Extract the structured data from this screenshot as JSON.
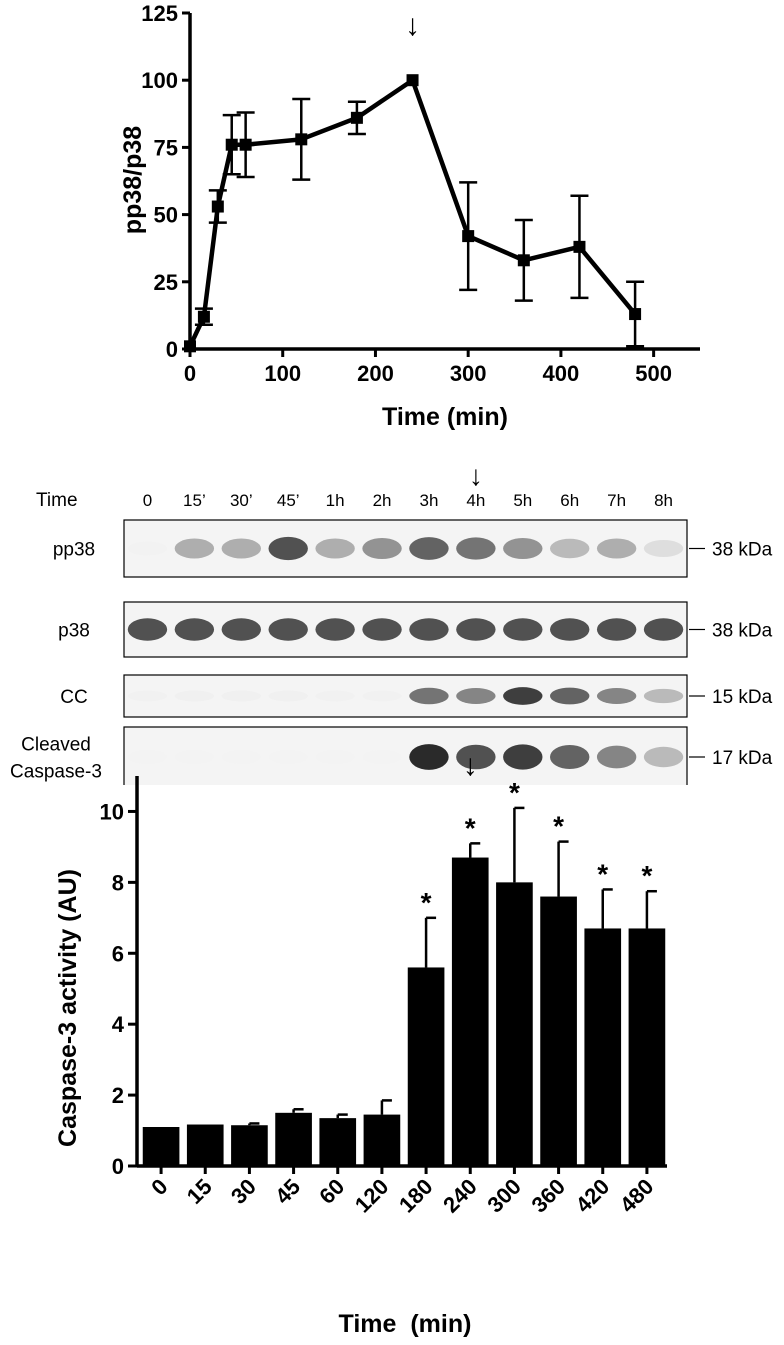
{
  "chart_data": [
    {
      "type": "line",
      "title": "",
      "xlabel": "Time (min)",
      "ylabel": "pp38/p38",
      "xlim": [
        0,
        550
      ],
      "ylim": [
        0,
        125
      ],
      "xticks": [
        "0",
        "100",
        "200",
        "300",
        "400",
        "500"
      ],
      "yticks": [
        "0",
        "25",
        "50",
        "75",
        "100",
        "125"
      ],
      "series": [
        {
          "x": [
            0,
            15,
            30,
            45,
            60,
            120,
            180,
            240,
            300,
            360,
            420,
            480
          ],
          "y": [
            1,
            12,
            53,
            76,
            76,
            78,
            86,
            100,
            42,
            33,
            38,
            13
          ],
          "error": [
            0,
            3,
            6,
            11,
            12,
            15,
            6,
            0,
            20,
            15,
            19,
            12
          ]
        }
      ],
      "annotation": {
        "marker": "↓",
        "at_x": 240
      }
    },
    {
      "type": "blot",
      "time_header": "Time",
      "lanes": [
        "0",
        "15’",
        "30’",
        "45’",
        "1h",
        "2h",
        "3h",
        "4h",
        "5h",
        "6h",
        "7h",
        "8h"
      ],
      "marker": "↓",
      "marker_lane": 7,
      "rows": [
        {
          "label": [
            "pp38"
          ],
          "kda": "38 kDa",
          "intensity": [
            0.02,
            0.55,
            0.55,
            0.85,
            0.55,
            0.65,
            0.8,
            0.75,
            0.65,
            0.5,
            0.55,
            0.3
          ]
        },
        {
          "label": [
            "p38"
          ],
          "kda": "38 kDa",
          "intensity": [
            0.85,
            0.85,
            0.85,
            0.85,
            0.85,
            0.85,
            0.85,
            0.85,
            0.85,
            0.85,
            0.85,
            0.85
          ]
        },
        {
          "label": [
            "CC"
          ],
          "kda": "15 kDa",
          "intensity": [
            0.08,
            0.1,
            0.1,
            0.1,
            0.08,
            0.08,
            0.75,
            0.7,
            0.9,
            0.8,
            0.7,
            0.5
          ]
        },
        {
          "label": [
            "Cleaved",
            "Caspase-3"
          ],
          "kda": "17 kDa",
          "intensity": [
            0.0,
            0.0,
            0.0,
            0.0,
            0.0,
            0.0,
            0.95,
            0.85,
            0.9,
            0.8,
            0.7,
            0.5
          ]
        }
      ]
    },
    {
      "type": "bar",
      "title": "",
      "xlabel": "Time  (min)",
      "ylabel": "Caspase-3 activity (AU)",
      "ylim": [
        0,
        11
      ],
      "yticks": [
        "0",
        "2",
        "4",
        "6",
        "8",
        "10"
      ],
      "categories": [
        "0",
        "15",
        "30",
        "45",
        "60",
        "120",
        "180",
        "240",
        "300",
        "360",
        "420",
        "480"
      ],
      "values": [
        1.1,
        1.17,
        1.15,
        1.5,
        1.35,
        1.45,
        5.6,
        8.7,
        8.0,
        7.6,
        6.7,
        6.7
      ],
      "error": [
        0,
        0,
        0.05,
        0.1,
        0.1,
        0.4,
        1.4,
        0.4,
        2.1,
        1.55,
        1.1,
        1.05
      ],
      "significance": [
        "",
        "",
        "",
        "",
        "",
        "",
        "*",
        "*",
        "*",
        "*",
        "*",
        "*"
      ],
      "annotation": {
        "marker": "↓",
        "at_category": "240"
      }
    }
  ]
}
